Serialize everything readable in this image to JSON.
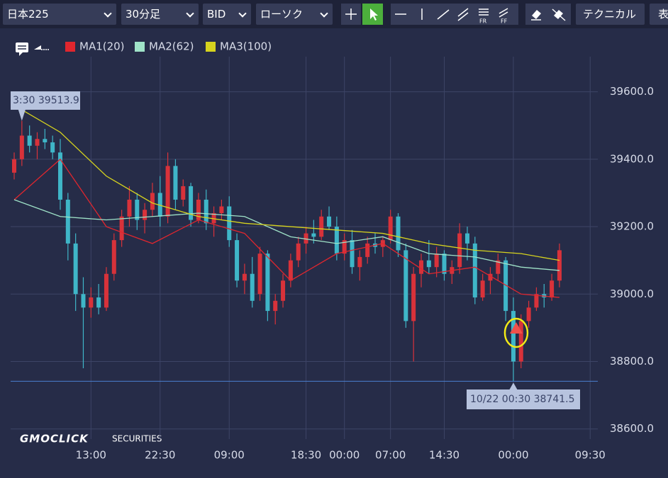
{
  "toolbar": {
    "symbol": "日本225",
    "interval": "30分足",
    "side": "BID",
    "chart_style": "ローソク",
    "technical": "テクニカル",
    "table": "表"
  },
  "watermark": {
    "brand": "GMOCLICK",
    "suffix": "SECURITIES"
  },
  "chart_data": {
    "type": "candlestick",
    "categories": [
      null,
      null,
      null,
      null,
      null,
      null,
      null,
      null,
      null,
      null,
      "13:00",
      null,
      null,
      null,
      null,
      null,
      null,
      null,
      null,
      "22:30",
      null,
      null,
      null,
      null,
      null,
      null,
      null,
      null,
      "09:00",
      null,
      null,
      null,
      null,
      null,
      null,
      null,
      null,
      null,
      "18:30",
      null,
      null,
      null,
      null,
      "00:00",
      null,
      null,
      null,
      null,
      null,
      "07:00",
      null,
      null,
      null,
      null,
      null,
      null,
      "14:30",
      null,
      null,
      null,
      null,
      null,
      null,
      null,
      null,
      "00:00",
      null,
      null,
      null,
      null,
      null,
      null,
      null,
      null,
      null,
      "09:30"
    ],
    "open": [
      39360,
      39400,
      39470,
      39440,
      39460,
      39450,
      39420,
      39280,
      39150,
      39000,
      38960,
      38990,
      38960,
      39060,
      39160,
      39230,
      39280,
      39220,
      39250,
      39300,
      39230,
      39380,
      39280,
      39320,
      39220,
      39280,
      39210,
      39240,
      39260,
      39160,
      39040,
      39060,
      39000,
      39120,
      38950,
      38980,
      39040,
      39100,
      39150,
      39180,
      39170,
      39230,
      39200,
      39120,
      39160,
      39080,
      39110,
      39150,
      39140,
      39160,
      39230,
      39130,
      38920,
      39060,
      39100,
      39080,
      39120,
      39060,
      39080,
      39180,
      39150,
      38990,
      39040,
      39060,
      39100,
      38950,
      38800,
      38920,
      38960,
      39000,
      38990,
      39040,
      null,
      null,
      null,
      null
    ],
    "high": [
      39420,
      39513.9,
      39500,
      39480,
      39490,
      39470,
      39460,
      39300,
      39180,
      39050,
      39020,
      39030,
      39080,
      39180,
      39250,
      39320,
      39300,
      39270,
      39330,
      39350,
      39420,
      39400,
      39340,
      39330,
      39300,
      39310,
      39260,
      39280,
      39290,
      39180,
      39090,
      39110,
      39140,
      39130,
      39000,
      39060,
      39120,
      39170,
      39200,
      39220,
      39250,
      39260,
      39230,
      39180,
      39190,
      39130,
      39170,
      39180,
      39170,
      39250,
      39240,
      39150,
      39080,
      39120,
      39160,
      39140,
      39130,
      39100,
      39210,
      39200,
      39170,
      39060,
      39080,
      39120,
      39110,
      38990,
      38940,
      38980,
      39020,
      39030,
      39060,
      39150,
      null,
      null,
      null,
      null
    ],
    "low": [
      39340,
      39380,
      39420,
      39400,
      39430,
      39400,
      39250,
      39100,
      38950,
      38780,
      38930,
      38940,
      38950,
      39040,
      39140,
      39200,
      39190,
      39180,
      39230,
      39200,
      39210,
      39250,
      39260,
      39200,
      39210,
      39190,
      39170,
      39220,
      39140,
      39020,
      39000,
      38960,
      38980,
      38920,
      38910,
      38960,
      39020,
      39080,
      39120,
      39150,
      39160,
      39190,
      39100,
      39100,
      39060,
      39040,
      39090,
      39120,
      39110,
      39150,
      39110,
      38900,
      38800,
      39020,
      39060,
      39050,
      39040,
      39030,
      39060,
      39100,
      38970,
      38980,
      39000,
      39040,
      38920,
      38741.5,
      38780,
      38900,
      38950,
      38960,
      38980,
      39020,
      null,
      null,
      null,
      null
    ],
    "close": [
      39400,
      39470,
      39440,
      39460,
      39450,
      39420,
      39280,
      39150,
      39000,
      38960,
      38990,
      38960,
      39060,
      39160,
      39230,
      39280,
      39220,
      39250,
      39300,
      39230,
      39380,
      39280,
      39320,
      39220,
      39280,
      39210,
      39240,
      39260,
      39160,
      39040,
      39060,
      38980,
      39120,
      38950,
      38980,
      39040,
      39100,
      39150,
      39180,
      39170,
      39230,
      39200,
      39120,
      39160,
      39080,
      39110,
      39150,
      39140,
      39160,
      39230,
      39130,
      38920,
      39060,
      39100,
      39080,
      39120,
      39060,
      39080,
      39180,
      39150,
      38990,
      39040,
      39060,
      39100,
      38950,
      38800,
      38920,
      38960,
      39000,
      38990,
      39040,
      39130,
      null,
      null,
      null,
      null
    ],
    "up_color": "#d8323a",
    "down_color": "#3fb6c8",
    "series": [
      {
        "name": "MA1(20)",
        "color": "#e0262e",
        "x": [
          0,
          6,
          12,
          18,
          24,
          30,
          36,
          42,
          48,
          54,
          60,
          66,
          71
        ],
        "values": [
          39280,
          39400,
          39200,
          39150,
          39220,
          39180,
          39040,
          39120,
          39150,
          39060,
          39080,
          39000,
          38990
        ]
      },
      {
        "name": "MA2(62)",
        "color": "#9fe3c8",
        "x": [
          0,
          6,
          12,
          18,
          24,
          30,
          36,
          42,
          48,
          54,
          60,
          66,
          71
        ],
        "values": [
          39280,
          39230,
          39220,
          39230,
          39240,
          39230,
          39170,
          39150,
          39170,
          39120,
          39110,
          39080,
          39070
        ]
      },
      {
        "name": "MA3(100)",
        "color": "#d6d31e",
        "x": [
          0,
          6,
          12,
          18,
          24,
          30,
          36,
          42,
          48,
          54,
          60,
          66,
          71
        ],
        "values": [
          39560,
          39480,
          39350,
          39270,
          39230,
          39210,
          39200,
          39190,
          39180,
          39150,
          39130,
          39120,
          39100
        ]
      }
    ],
    "ylim": [
      38570,
      39700
    ],
    "yticks": [
      {
        "value": 38600,
        "label": "38600.0"
      },
      {
        "value": 38800,
        "label": "38800.0"
      },
      {
        "value": 39000,
        "label": "39000.0"
      },
      {
        "value": 39200,
        "label": "39200.0"
      },
      {
        "value": 39400,
        "label": "39400.0"
      },
      {
        "value": 39600,
        "label": "39600.0"
      }
    ],
    "grid": true,
    "annotations": [
      {
        "text": "3:30 39513.9",
        "index": 1,
        "value": 39513.9
      },
      {
        "text": "10/22 00:30 38741.5",
        "index": 65,
        "value": 38741.5
      }
    ]
  }
}
